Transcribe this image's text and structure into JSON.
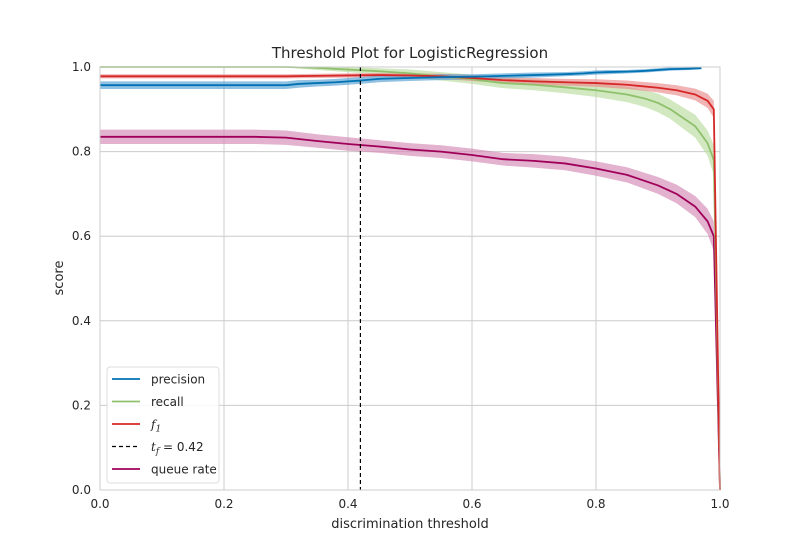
{
  "chart_data": {
    "type": "line",
    "title": "Threshold Plot for LogisticRegression",
    "xlabel": "discrimination threshold",
    "ylabel": "score",
    "xlim": [
      0.0,
      1.0
    ],
    "ylim": [
      0.0,
      1.0
    ],
    "grid": true,
    "legend_position": "lower-left",
    "xticks": [
      "0.0",
      "0.2",
      "0.4",
      "0.6",
      "0.8",
      "1.0"
    ],
    "yticks": [
      "0.0",
      "0.2",
      "0.4",
      "0.6",
      "0.8",
      "1.0"
    ],
    "threshold": {
      "value": 0.42,
      "label_symbol": "t",
      "label_subscript": "f",
      "label_text": " = 0.42",
      "color": "#000000"
    },
    "series": [
      {
        "name": "precision",
        "color": "#0072B2",
        "band_color": "#56A0D3",
        "x": [
          0.0,
          0.05,
          0.1,
          0.15,
          0.2,
          0.25,
          0.3,
          0.32,
          0.35,
          0.38,
          0.4,
          0.42,
          0.45,
          0.5,
          0.55,
          0.6,
          0.65,
          0.7,
          0.75,
          0.78,
          0.8,
          0.82,
          0.85,
          0.88,
          0.9,
          0.92,
          0.95,
          0.97
        ],
        "y": [
          0.957,
          0.957,
          0.957,
          0.957,
          0.957,
          0.957,
          0.957,
          0.96,
          0.962,
          0.964,
          0.966,
          0.968,
          0.972,
          0.974,
          0.976,
          0.977,
          0.979,
          0.981,
          0.983,
          0.985,
          0.987,
          0.988,
          0.989,
          0.991,
          0.993,
          0.995,
          0.996,
          0.997
        ],
        "lower": [
          0.948,
          0.948,
          0.948,
          0.948,
          0.948,
          0.948,
          0.948,
          0.951,
          0.954,
          0.956,
          0.958,
          0.96,
          0.964,
          0.967,
          0.969,
          0.971,
          0.973,
          0.975,
          0.978,
          0.98,
          0.982,
          0.983,
          0.985,
          0.987,
          0.989,
          0.991,
          0.993,
          0.995
        ],
        "upper": [
          0.966,
          0.966,
          0.966,
          0.966,
          0.966,
          0.966,
          0.966,
          0.969,
          0.97,
          0.972,
          0.974,
          0.976,
          0.98,
          0.981,
          0.983,
          0.983,
          0.985,
          0.987,
          0.988,
          0.99,
          0.992,
          0.993,
          0.993,
          0.995,
          0.997,
          0.999,
          0.999,
          0.999
        ]
      },
      {
        "name": "recall",
        "color": "#8FC06C",
        "band_color": "#B9DB9E",
        "x": [
          0.0,
          0.1,
          0.2,
          0.3,
          0.35,
          0.4,
          0.45,
          0.5,
          0.55,
          0.6,
          0.65,
          0.7,
          0.75,
          0.8,
          0.85,
          0.88,
          0.9,
          0.92,
          0.94,
          0.96,
          0.98,
          0.99,
          1.0
        ],
        "y": [
          1.0,
          1.0,
          1.0,
          1.0,
          0.998,
          0.994,
          0.99,
          0.985,
          0.978,
          0.971,
          0.962,
          0.958,
          0.952,
          0.945,
          0.935,
          0.925,
          0.915,
          0.9,
          0.88,
          0.86,
          0.82,
          0.78,
          0.0
        ],
        "lower": [
          1.0,
          1.0,
          1.0,
          0.999,
          0.993,
          0.988,
          0.983,
          0.976,
          0.968,
          0.96,
          0.95,
          0.945,
          0.938,
          0.929,
          0.917,
          0.905,
          0.893,
          0.877,
          0.855,
          0.833,
          0.79,
          0.745,
          0.0
        ],
        "upper": [
          1.0,
          1.0,
          1.0,
          1.0,
          1.0,
          1.0,
          0.997,
          0.994,
          0.988,
          0.982,
          0.974,
          0.971,
          0.966,
          0.961,
          0.953,
          0.945,
          0.937,
          0.923,
          0.905,
          0.887,
          0.85,
          0.815,
          0.0
        ]
      },
      {
        "name": "f_1",
        "label_symbol": "f",
        "label_subscript": "1",
        "color": "#D62728",
        "band_color": "#EA8C8C",
        "x": [
          0.0,
          0.1,
          0.2,
          0.3,
          0.35,
          0.4,
          0.45,
          0.5,
          0.55,
          0.6,
          0.65,
          0.7,
          0.75,
          0.8,
          0.85,
          0.9,
          0.93,
          0.96,
          0.98,
          0.99,
          1.0
        ],
        "y": [
          0.978,
          0.978,
          0.978,
          0.978,
          0.979,
          0.98,
          0.981,
          0.98,
          0.978,
          0.974,
          0.969,
          0.966,
          0.964,
          0.962,
          0.958,
          0.951,
          0.945,
          0.935,
          0.92,
          0.9,
          0.0
        ],
        "lower": [
          0.973,
          0.973,
          0.973,
          0.973,
          0.974,
          0.975,
          0.976,
          0.975,
          0.972,
          0.967,
          0.962,
          0.958,
          0.956,
          0.953,
          0.948,
          0.94,
          0.933,
          0.921,
          0.903,
          0.88,
          0.0
        ],
        "upper": [
          0.983,
          0.983,
          0.983,
          0.983,
          0.984,
          0.985,
          0.986,
          0.985,
          0.984,
          0.981,
          0.976,
          0.974,
          0.972,
          0.971,
          0.968,
          0.962,
          0.957,
          0.949,
          0.937,
          0.92,
          0.0
        ]
      },
      {
        "name": "queue rate",
        "color": "#A0005A",
        "band_color": "#D488B4",
        "x": [
          0.0,
          0.05,
          0.1,
          0.15,
          0.2,
          0.25,
          0.3,
          0.35,
          0.4,
          0.45,
          0.5,
          0.55,
          0.6,
          0.65,
          0.7,
          0.75,
          0.8,
          0.85,
          0.9,
          0.93,
          0.96,
          0.98,
          0.99,
          1.0
        ],
        "y": [
          0.835,
          0.835,
          0.835,
          0.835,
          0.835,
          0.835,
          0.833,
          0.825,
          0.818,
          0.812,
          0.805,
          0.8,
          0.792,
          0.782,
          0.778,
          0.772,
          0.76,
          0.745,
          0.72,
          0.7,
          0.67,
          0.635,
          0.6,
          0.0
        ],
        "lower": [
          0.818,
          0.818,
          0.818,
          0.818,
          0.818,
          0.818,
          0.816,
          0.809,
          0.802,
          0.797,
          0.79,
          0.785,
          0.777,
          0.767,
          0.762,
          0.756,
          0.743,
          0.727,
          0.7,
          0.678,
          0.645,
          0.605,
          0.565,
          0.0
        ],
        "upper": [
          0.852,
          0.852,
          0.852,
          0.852,
          0.852,
          0.852,
          0.85,
          0.841,
          0.834,
          0.827,
          0.82,
          0.815,
          0.807,
          0.797,
          0.794,
          0.788,
          0.777,
          0.763,
          0.74,
          0.722,
          0.695,
          0.665,
          0.635,
          0.0
        ]
      }
    ]
  }
}
